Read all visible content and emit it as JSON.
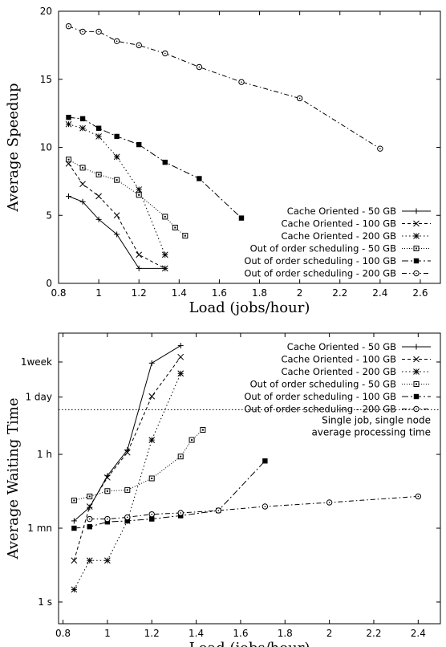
{
  "chart_data": [
    {
      "type": "line",
      "xlabel": "Load (jobs/hour)",
      "ylabel": "Average Speedup",
      "xlim": [
        0.8,
        2.7
      ],
      "ylim": [
        0,
        20
      ],
      "xticks": [
        "0.8",
        "1",
        "1.2",
        "1.4",
        "1.6",
        "1.8",
        "2",
        "2.2",
        "2.4",
        "2.6"
      ],
      "yticks": [
        "0",
        "5",
        "10",
        "15",
        "20"
      ],
      "legend_position": "bottom-right",
      "series": [
        {
          "name": "Cache Oriented - 50 GB",
          "marker": "plus",
          "dash": "none",
          "x": [
            0.85,
            0.92,
            1.0,
            1.09,
            1.2,
            1.33
          ],
          "y": [
            6.4,
            6.0,
            4.7,
            3.6,
            1.1,
            1.1
          ]
        },
        {
          "name": "Cache Oriented - 100 GB",
          "marker": "cross",
          "dash": "4,3",
          "x": [
            0.85,
            0.92,
            1.0,
            1.09,
            1.2,
            1.33
          ],
          "y": [
            8.8,
            7.3,
            6.4,
            5.0,
            2.1,
            1.1
          ]
        },
        {
          "name": "Cache Oriented - 200 GB",
          "marker": "star",
          "dash": "1.5,3",
          "x": [
            0.85,
            0.92,
            1.0,
            1.09,
            1.2,
            1.33
          ],
          "y": [
            11.7,
            11.4,
            10.8,
            9.3,
            6.9,
            2.1
          ]
        },
        {
          "name": "Out of order scheduling - 50 GB",
          "marker": "open-square",
          "dash": "1,2",
          "x": [
            0.85,
            0.92,
            1.0,
            1.09,
            1.2,
            1.33,
            1.38,
            1.43
          ],
          "y": [
            9.1,
            8.5,
            8.0,
            7.6,
            6.5,
            4.9,
            4.1,
            3.5
          ]
        },
        {
          "name": "Out of order scheduling - 100 GB",
          "marker": "filled-square",
          "dash": "8,3,2,3",
          "x": [
            0.85,
            0.92,
            1.0,
            1.09,
            1.2,
            1.33,
            1.5,
            1.71
          ],
          "y": [
            12.2,
            12.1,
            11.4,
            10.8,
            10.2,
            8.9,
            7.7,
            4.8
          ]
        },
        {
          "name": "Out of order scheduling - 200 GB",
          "marker": "open-circle",
          "dash": "6,3,1.5,3",
          "x": [
            0.85,
            0.92,
            1.0,
            1.09,
            1.2,
            1.33,
            1.5,
            1.71,
            2.0,
            2.4
          ],
          "y": [
            18.9,
            18.5,
            18.5,
            17.8,
            17.5,
            16.9,
            15.9,
            14.8,
            13.6,
            9.9
          ]
        }
      ]
    },
    {
      "type": "line",
      "xlabel": "Load (jobs/hour)",
      "ylabel": "Average Waiting Time",
      "yscale": "log",
      "xlim": [
        0.78,
        2.5
      ],
      "xticks": [
        "0.8",
        "1",
        "1.2",
        "1.4",
        "1.6",
        "1.8",
        "2",
        "2.2",
        "2.4"
      ],
      "yticks": [
        {
          "label": "1 s",
          "seconds": 1
        },
        {
          "label": "1 mn",
          "seconds": 60
        },
        {
          "label": "1 h",
          "seconds": 3600
        },
        {
          "label": "1 day",
          "seconds": 86400
        },
        {
          "label": "1week",
          "seconds": 604800
        }
      ],
      "ylim_seconds": [
        0.3,
        3000000
      ],
      "legend_position": "top-right",
      "reference_line": {
        "y_seconds": 43000,
        "label_lines": [
          "Single job, single node",
          "average processing time"
        ]
      },
      "series": [
        {
          "name": "Cache Oriented - 50 GB",
          "marker": "plus",
          "dash": "none",
          "x": [
            0.85,
            0.92,
            1.0,
            1.09,
            1.2,
            1.33
          ],
          "y_seconds": [
            90,
            190,
            1100,
            4600,
            570000,
            1500000
          ]
        },
        {
          "name": "Cache Oriented - 100 GB",
          "marker": "cross",
          "dash": "4,3",
          "x": [
            0.85,
            0.92,
            1.0,
            1.09,
            1.2,
            1.33
          ],
          "y_seconds": [
            10,
            200,
            1000,
            4000,
            90000,
            800000
          ]
        },
        {
          "name": "Cache Oriented - 200 GB",
          "marker": "star",
          "dash": "1.5,3",
          "x": [
            0.85,
            0.92,
            1.0,
            1.09,
            1.2,
            1.33
          ],
          "y_seconds": [
            2,
            10,
            10,
            90,
            8000,
            320000
          ]
        },
        {
          "name": "Out of order scheduling - 50 GB",
          "marker": "open-square",
          "dash": "1,2",
          "x": [
            0.85,
            0.92,
            1.0,
            1.09,
            1.2,
            1.33,
            1.38,
            1.43
          ],
          "y_seconds": [
            280,
            350,
            470,
            500,
            950,
            3200,
            8000,
            14000
          ]
        },
        {
          "name": "Out of order scheduling - 100 GB",
          "marker": "filled-square",
          "dash": "8,3,2,3",
          "x": [
            0.85,
            0.92,
            1.0,
            1.09,
            1.2,
            1.33,
            1.5,
            1.71
          ],
          "y_seconds": [
            60,
            65,
            85,
            90,
            100,
            120,
            160,
            2500
          ]
        },
        {
          "name": "Out of order scheduling - 200 GB",
          "marker": "open-circle",
          "dash": "6,3,1.5,3",
          "x": [
            0.92,
            1.0,
            1.09,
            1.2,
            1.33,
            1.5,
            1.71,
            2.0,
            2.4
          ],
          "y_seconds": [
            100,
            100,
            110,
            130,
            140,
            160,
            200,
            250,
            350
          ]
        }
      ]
    }
  ]
}
